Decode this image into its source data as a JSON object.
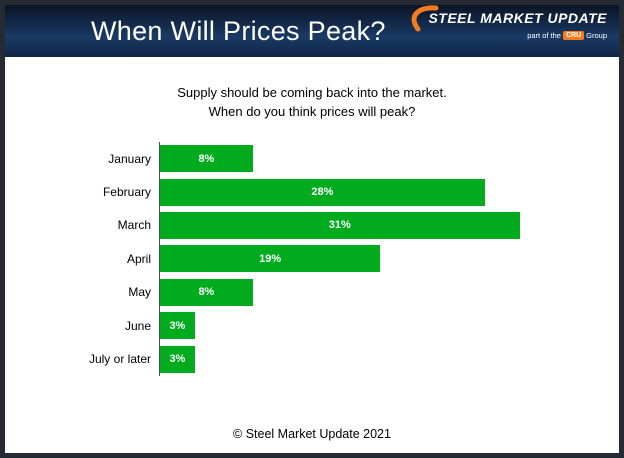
{
  "header": {
    "title": "When Will Prices Peak?",
    "logo": {
      "name": "STEEL MARKET UPDATE",
      "tagline_prefix": "part of the",
      "cru": "CRU",
      "tagline_suffix": "Group",
      "accent_color": "#F47B20"
    }
  },
  "subtitle": {
    "line1": "Supply should be coming back into the market.",
    "line2": "When do you think prices will peak?"
  },
  "chart_data": {
    "type": "bar",
    "orientation": "horizontal",
    "title": "Supply should be coming back into the market. When do you think prices will peak?",
    "categories": [
      "January",
      "February",
      "March",
      "April",
      "May",
      "June",
      "July or later"
    ],
    "values": [
      8,
      28,
      31,
      19,
      8,
      3,
      3
    ],
    "value_labels": [
      "8%",
      "28%",
      "31%",
      "19%",
      "8%",
      "3%",
      "3%"
    ],
    "bar_color": "#00AB1D",
    "xlim": [
      0,
      32
    ],
    "grid": false,
    "legend": false,
    "value_label_position": "center",
    "value_label_color": "#ffffff"
  },
  "footer": {
    "copyright": "© Steel Market Update 2021"
  }
}
